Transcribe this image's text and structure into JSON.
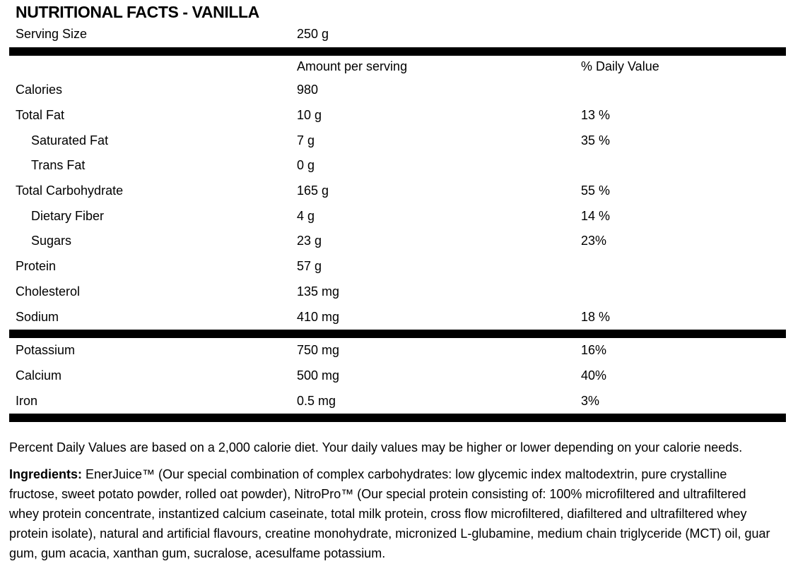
{
  "title": "NUTRITIONAL FACTS - VANILLA",
  "colors": {
    "divider_bar": "#000000",
    "text": "#000000",
    "background": "#ffffff"
  },
  "serving": {
    "label": "Serving Size",
    "value": "250 g"
  },
  "table": {
    "headers": {
      "amount": "Amount per serving",
      "daily": "% Daily Value"
    },
    "rows": [
      {
        "label": "Calories",
        "amount": "980",
        "daily": ""
      },
      {
        "label": "Total Fat",
        "amount": "10 g",
        "daily": "13 %"
      },
      {
        "label": "Saturated Fat",
        "amount": "7 g",
        "daily": "35 %"
      },
      {
        "label": "Trans Fat",
        "amount": "0 g",
        "daily": ""
      },
      {
        "label": "Total Carbohydrate",
        "amount": "165 g",
        "daily": "55 %"
      },
      {
        "label": "Dietary Fiber",
        "amount": "4 g",
        "daily": "14 %"
      },
      {
        "label": "Sugars",
        "amount": "23 g",
        "daily": "23%"
      },
      {
        "label": "Protein",
        "amount": "57 g",
        "daily": ""
      },
      {
        "label": "Cholesterol",
        "amount": "135 mg",
        "daily": ""
      },
      {
        "label": "Sodium",
        "amount": "410 mg",
        "daily": "18 %"
      }
    ],
    "mineral_rows": [
      {
        "label": "Potassium",
        "amount": "750 mg",
        "daily": "16%"
      },
      {
        "label": "Calcium",
        "amount": "500 mg",
        "daily": "40%"
      },
      {
        "label": "Iron",
        "amount": "0.5 mg",
        "daily": "3%"
      }
    ]
  },
  "footer": {
    "daily_value_note": "Percent Daily Values are based on a 2,000 calorie diet. Your daily values may be higher or lower depending on your calorie needs.",
    "ingredients_label": "Ingredients:",
    "ingredients_text": " EnerJuice™ (Our special combination of complex carbohydrates: low glycemic index maltodextrin, pure crystalline fructose, sweet potato powder, rolled oat powder), NitroPro™ (Our special protein consisting of: 100% microfiltered and ultrafiltered whey protein concentrate, instantized calcium caseinate, total milk protein, cross flow microfiltered, diafiltered and ultrafiltered whey protein isolate), natural and artificial flavours, creatine monohydrate, micronized L-glubamine, medium chain triglyceride (MCT) oil, guar gum, gum acacia, xanthan gum, sucralose, acesulfame potassium."
  }
}
